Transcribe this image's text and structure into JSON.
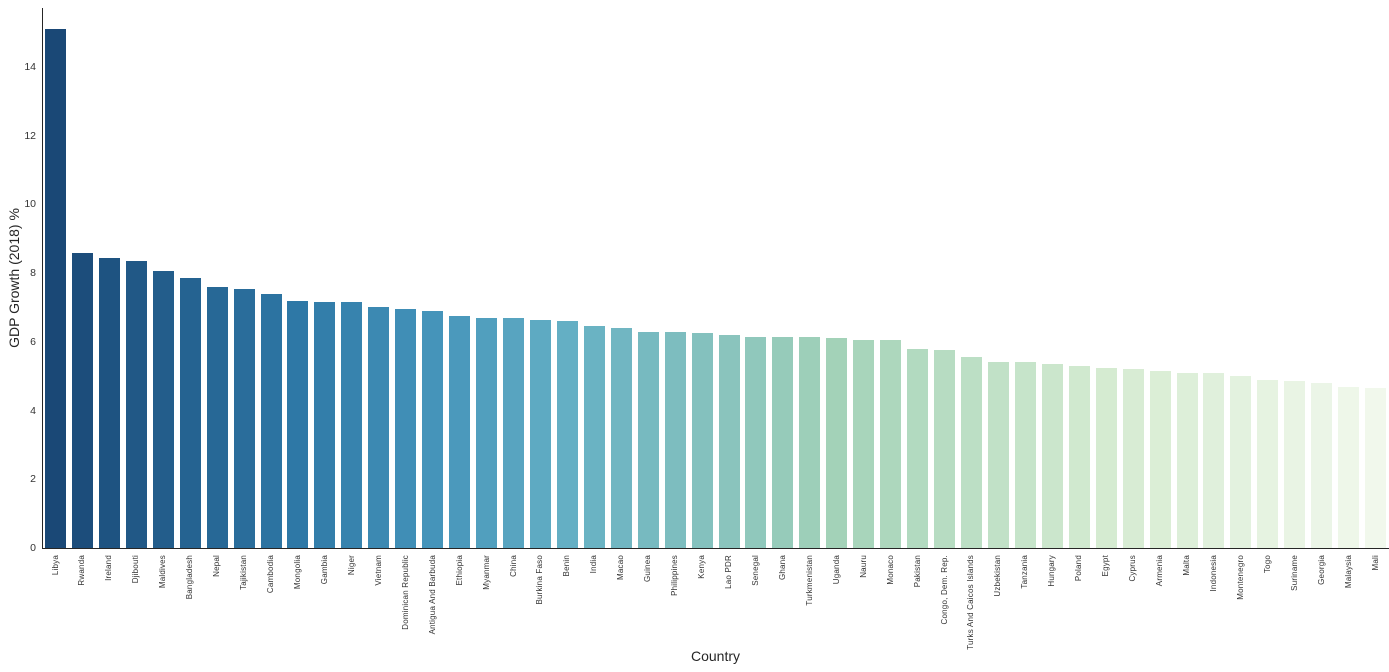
{
  "chart_data": {
    "type": "bar",
    "title": "",
    "xlabel": "Country",
    "ylabel": "GDP Growth (2018) %",
    "ylim": [
      0,
      15.7
    ],
    "yticks": [
      0,
      2,
      4,
      6,
      8,
      10,
      12,
      14
    ],
    "grid": false,
    "legend": "none",
    "categories": [
      "Libya",
      "Rwanda",
      "Ireland",
      "Djibouti",
      "Maldives",
      "Bangladesh",
      "Nepal",
      "Tajikistan",
      "Cambodia",
      "Mongolia",
      "Gambia",
      "Niger",
      "Vietnam",
      "Dominican Republic",
      "Antigua And Barbuda",
      "Ethiopia",
      "Myanmar",
      "China",
      "Burkina Faso",
      "Benin",
      "India",
      "Macao",
      "Guinea",
      "Philippines",
      "Kenya",
      "Lao PDR",
      "Senegal",
      "Ghana",
      "Turkmenistan",
      "Uganda",
      "Nauru",
      "Monaco",
      "Pakistan",
      "Congo, Dem. Rep.",
      "Turks And Caicos Islands",
      "Uzbekistan",
      "Tanzania",
      "Hungary",
      "Poland",
      "Egypt",
      "Cyprus",
      "Armenia",
      "Malta",
      "Indonesia",
      "Montenegro",
      "Togo",
      "Suriname",
      "Georgia",
      "Malaysia",
      "Mali"
    ],
    "values": [
      15.1,
      8.6,
      8.45,
      8.35,
      8.05,
      7.85,
      7.6,
      7.55,
      7.4,
      7.2,
      7.15,
      7.15,
      7.0,
      6.95,
      6.9,
      6.75,
      6.7,
      6.7,
      6.65,
      6.6,
      6.45,
      6.4,
      6.3,
      6.3,
      6.25,
      6.2,
      6.15,
      6.15,
      6.15,
      6.1,
      6.05,
      6.05,
      5.8,
      5.75,
      5.55,
      5.4,
      5.4,
      5.35,
      5.3,
      5.25,
      5.2,
      5.15,
      5.1,
      5.1,
      5.0,
      4.9,
      4.85,
      4.8,
      4.7,
      4.65
    ],
    "palette_anchors": [
      {
        "index": 0,
        "color": "#1a4876"
      },
      {
        "index": 9,
        "color": "#2e78a6"
      },
      {
        "index": 14,
        "color": "#4594ba"
      },
      {
        "index": 19,
        "color": "#64afc4"
      },
      {
        "index": 29,
        "color": "#a3d2b8"
      },
      {
        "index": 39,
        "color": "#d5ebd1"
      },
      {
        "index": 49,
        "color": "#f1f8ec"
      }
    ],
    "spine_color": "#262626",
    "tick_label_color": "#333333"
  }
}
